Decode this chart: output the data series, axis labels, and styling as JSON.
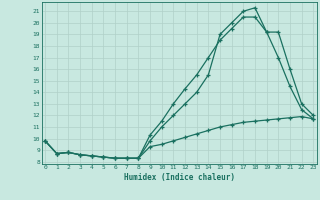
{
  "title": "",
  "xlabel": "Humidex (Indice chaleur)",
  "ylabel": "",
  "background_color": "#c8e8e0",
  "grid_color": "#b0d0c8",
  "line_color": "#1a7060",
  "x_ticks": [
    0,
    1,
    2,
    3,
    4,
    5,
    6,
    7,
    8,
    9,
    10,
    11,
    12,
    13,
    14,
    15,
    16,
    17,
    18,
    19,
    20,
    21,
    22,
    23
  ],
  "y_ticks": [
    8,
    9,
    10,
    11,
    12,
    13,
    14,
    15,
    16,
    17,
    18,
    19,
    20,
    21
  ],
  "xlim": [
    -0.3,
    23.3
  ],
  "ylim": [
    7.8,
    21.8
  ],
  "series": [
    {
      "x": [
        0,
        1,
        2,
        3,
        4,
        5,
        6,
        7,
        8,
        9,
        10,
        11,
        12,
        13,
        14,
        15,
        16,
        17,
        18,
        19,
        20,
        21,
        22,
        23
      ],
      "y": [
        9.8,
        8.7,
        8.8,
        8.6,
        8.5,
        8.4,
        8.3,
        8.3,
        8.3,
        9.3,
        9.5,
        9.8,
        10.1,
        10.4,
        10.7,
        11.0,
        11.2,
        11.4,
        11.5,
        11.6,
        11.7,
        11.8,
        11.9,
        11.7
      ]
    },
    {
      "x": [
        0,
        1,
        2,
        3,
        4,
        5,
        6,
        7,
        8,
        9,
        10,
        11,
        12,
        13,
        14,
        15,
        16,
        17,
        18,
        19,
        20,
        21,
        22,
        23
      ],
      "y": [
        9.8,
        8.7,
        8.8,
        8.6,
        8.5,
        8.4,
        8.3,
        8.3,
        8.3,
        10.3,
        11.5,
        13.0,
        14.3,
        15.5,
        17.0,
        18.5,
        19.5,
        20.5,
        20.5,
        19.2,
        17.0,
        14.5,
        12.5,
        11.7
      ]
    },
    {
      "x": [
        0,
        1,
        2,
        3,
        4,
        5,
        6,
        7,
        8,
        9,
        10,
        11,
        12,
        13,
        14,
        15,
        16,
        17,
        18,
        19,
        20,
        21,
        22,
        23
      ],
      "y": [
        9.8,
        8.7,
        8.8,
        8.6,
        8.5,
        8.4,
        8.3,
        8.3,
        8.3,
        9.8,
        11.0,
        12.0,
        13.0,
        14.0,
        15.5,
        19.0,
        20.0,
        21.0,
        21.3,
        19.2,
        19.2,
        16.0,
        13.0,
        12.0
      ]
    }
  ]
}
